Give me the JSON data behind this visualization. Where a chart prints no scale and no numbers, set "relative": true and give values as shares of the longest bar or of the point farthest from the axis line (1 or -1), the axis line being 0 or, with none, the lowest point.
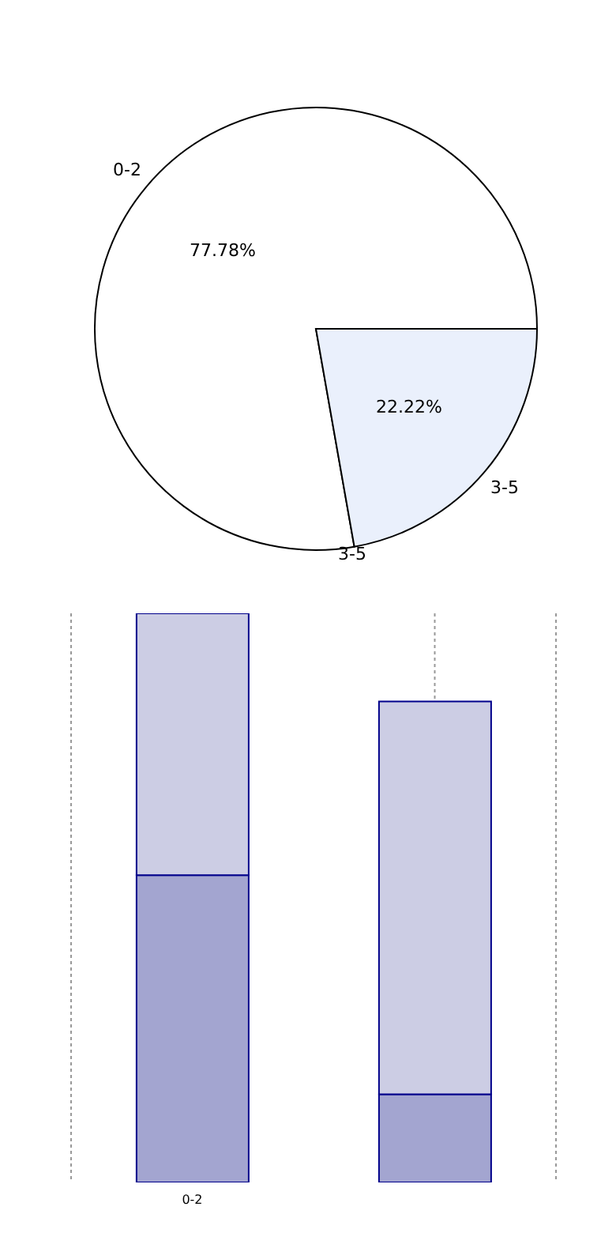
{
  "chart_data": [
    {
      "type": "pie",
      "categories": [
        "0-2",
        "3-5"
      ],
      "values": [
        77.78,
        22.22
      ],
      "colors": [
        "#ffffff",
        "#eaf0fc"
      ],
      "value_labels": [
        "77.78%",
        "22.22%"
      ],
      "annotations": [
        "3-5"
      ],
      "legend": false
    },
    {
      "type": "bar",
      "relative": true,
      "stacked": true,
      "categories": [
        "0-2",
        null
      ],
      "series": [
        {
          "color": "#a3a5d0",
          "values": [
            0.54,
            0.155
          ]
        },
        {
          "color": "#cccde4",
          "values": [
            0.46,
            0.69
          ]
        }
      ],
      "grid": "x",
      "legend": false
    }
  ]
}
